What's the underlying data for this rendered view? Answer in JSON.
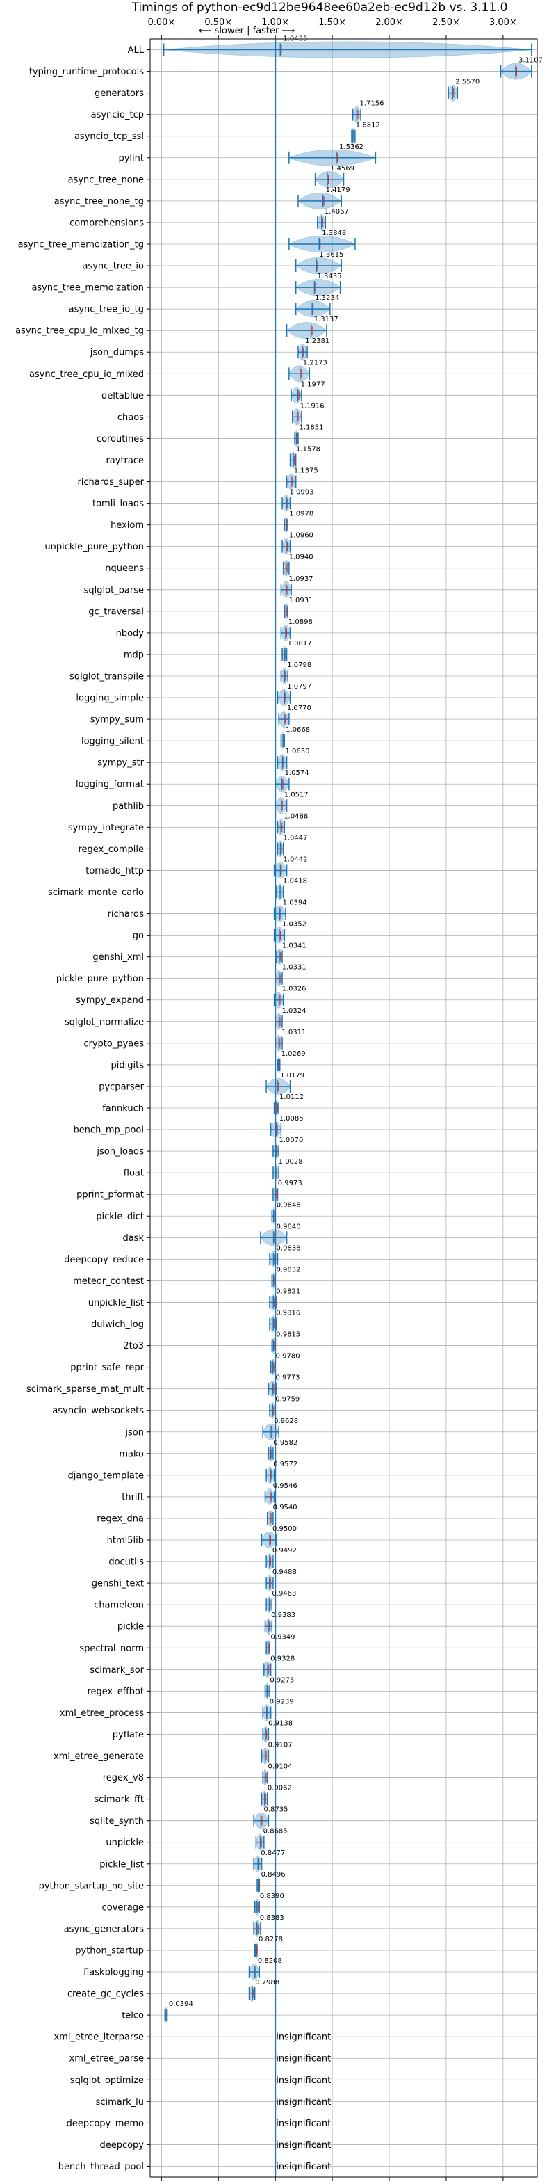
{
  "chart_data": {
    "type": "violin",
    "title": "Timings of python-ec9d12be9648ee60a2eb-ec9d12b vs. 3.11.0",
    "annotation": "⟵ slower | faster ⟶",
    "xlim": [
      -0.1,
      3.3
    ],
    "xticks": [
      0.0,
      0.5,
      1.0,
      1.5,
      2.0,
      2.5,
      3.0
    ],
    "xtick_labels": [
      "0.00×",
      "0.50×",
      "1.00×",
      "1.50×",
      "2.00×",
      "2.50×",
      "3.00×"
    ],
    "reference_line": 1.0,
    "grid": true,
    "colors": {
      "violin": "#1f77b4",
      "median": "#1f77b4",
      "mean": "#d62728"
    },
    "benchmarks": [
      {
        "name": "ALL",
        "value": 1.0435,
        "label": "1.0435",
        "min": 0.02,
        "max": 3.25
      },
      {
        "name": "typing_runtime_protocols",
        "value": 3.1107,
        "label": "3.1107",
        "min": 2.98,
        "max": 3.25
      },
      {
        "name": "generators",
        "value": 2.557,
        "label": "2.5570",
        "min": 2.52,
        "max": 2.6
      },
      {
        "name": "asyncio_tcp",
        "value": 1.7156,
        "label": "1.7156",
        "min": 1.68,
        "max": 1.75
      },
      {
        "name": "asyncio_tcp_ssl",
        "value": 1.6812,
        "label": "1.6812",
        "min": 1.67,
        "max": 1.7
      },
      {
        "name": "pylint",
        "value": 1.5362,
        "label": "1.5362",
        "min": 1.12,
        "max": 1.88
      },
      {
        "name": "async_tree_none",
        "value": 1.4569,
        "label": "1.4569",
        "min": 1.35,
        "max": 1.6
      },
      {
        "name": "async_tree_none_tg",
        "value": 1.4179,
        "label": "1.4179",
        "min": 1.2,
        "max": 1.58
      },
      {
        "name": "comprehensions",
        "value": 1.4067,
        "label": "1.4067",
        "min": 1.37,
        "max": 1.44
      },
      {
        "name": "async_tree_memoization_tg",
        "value": 1.3848,
        "label": "1.3848",
        "min": 1.12,
        "max": 1.7
      },
      {
        "name": "async_tree_io",
        "value": 1.3615,
        "label": "1.3615",
        "min": 1.18,
        "max": 1.58
      },
      {
        "name": "async_tree_memoization",
        "value": 1.3435,
        "label": "1.3435",
        "min": 1.18,
        "max": 1.57
      },
      {
        "name": "async_tree_io_tg",
        "value": 1.3234,
        "label": "1.3234",
        "min": 1.18,
        "max": 1.48
      },
      {
        "name": "async_tree_cpu_io_mixed_tg",
        "value": 1.3137,
        "label": "1.3137",
        "min": 1.1,
        "max": 1.45
      },
      {
        "name": "json_dumps",
        "value": 1.2381,
        "label": "1.2381",
        "min": 1.2,
        "max": 1.28
      },
      {
        "name": "async_tree_cpu_io_mixed",
        "value": 1.2173,
        "label": "1.2173",
        "min": 1.12,
        "max": 1.3
      },
      {
        "name": "deltablue",
        "value": 1.1977,
        "label": "1.1977",
        "min": 1.14,
        "max": 1.23
      },
      {
        "name": "chaos",
        "value": 1.1916,
        "label": "1.1916",
        "min": 1.15,
        "max": 1.23
      },
      {
        "name": "coroutines",
        "value": 1.1851,
        "label": "1.1851",
        "min": 1.17,
        "max": 1.2
      },
      {
        "name": "raytrace",
        "value": 1.1578,
        "label": "1.1578",
        "min": 1.13,
        "max": 1.18
      },
      {
        "name": "richards_super",
        "value": 1.1375,
        "label": "1.1375",
        "min": 1.1,
        "max": 1.18
      },
      {
        "name": "tomli_loads",
        "value": 1.0993,
        "label": "1.0993",
        "min": 1.06,
        "max": 1.13
      },
      {
        "name": "hexiom",
        "value": 1.0978,
        "label": "1.0978",
        "min": 1.08,
        "max": 1.11
      },
      {
        "name": "unpickle_pure_python",
        "value": 1.096,
        "label": "1.0960",
        "min": 1.06,
        "max": 1.13
      },
      {
        "name": "nqueens",
        "value": 1.094,
        "label": "1.0940",
        "min": 1.07,
        "max": 1.12
      },
      {
        "name": "sqlglot_parse",
        "value": 1.0937,
        "label": "1.0937",
        "min": 1.05,
        "max": 1.14
      },
      {
        "name": "gc_traversal",
        "value": 1.0931,
        "label": "1.0931",
        "min": 1.08,
        "max": 1.11
      },
      {
        "name": "nbody",
        "value": 1.0898,
        "label": "1.0898",
        "min": 1.05,
        "max": 1.13
      },
      {
        "name": "mdp",
        "value": 1.0817,
        "label": "1.0817",
        "min": 1.06,
        "max": 1.1
      },
      {
        "name": "sqlglot_transpile",
        "value": 1.0798,
        "label": "1.0798",
        "min": 1.05,
        "max": 1.11
      },
      {
        "name": "logging_simple",
        "value": 1.0797,
        "label": "1.0797",
        "min": 1.02,
        "max": 1.13
      },
      {
        "name": "sympy_sum",
        "value": 1.077,
        "label": "1.0770",
        "min": 1.03,
        "max": 1.12
      },
      {
        "name": "logging_silent",
        "value": 1.0668,
        "label": "1.0668",
        "min": 1.05,
        "max": 1.08
      },
      {
        "name": "sympy_str",
        "value": 1.063,
        "label": "1.0630",
        "min": 1.02,
        "max": 1.1
      },
      {
        "name": "logging_format",
        "value": 1.0574,
        "label": "1.0574",
        "min": 1.0,
        "max": 1.12
      },
      {
        "name": "pathlib",
        "value": 1.0517,
        "label": "1.0517",
        "min": 1.0,
        "max": 1.1
      },
      {
        "name": "sympy_integrate",
        "value": 1.0488,
        "label": "1.0488",
        "min": 1.02,
        "max": 1.08
      },
      {
        "name": "regex_compile",
        "value": 1.0447,
        "label": "1.0447",
        "min": 1.02,
        "max": 1.07
      },
      {
        "name": "tornado_http",
        "value": 1.0442,
        "label": "1.0442",
        "min": 0.99,
        "max": 1.1
      },
      {
        "name": "scimark_monte_carlo",
        "value": 1.0418,
        "label": "1.0418",
        "min": 1.01,
        "max": 1.07
      },
      {
        "name": "richards",
        "value": 1.0394,
        "label": "1.0394",
        "min": 0.99,
        "max": 1.09
      },
      {
        "name": "go",
        "value": 1.0352,
        "label": "1.0352",
        "min": 0.99,
        "max": 1.08
      },
      {
        "name": "genshi_xml",
        "value": 1.0341,
        "label": "1.0341",
        "min": 1.01,
        "max": 1.06
      },
      {
        "name": "pickle_pure_python",
        "value": 1.0331,
        "label": "1.0331",
        "min": 1.0,
        "max": 1.06
      },
      {
        "name": "sympy_expand",
        "value": 1.0326,
        "label": "1.0326",
        "min": 0.99,
        "max": 1.07
      },
      {
        "name": "sqlglot_normalize",
        "value": 1.0324,
        "label": "1.0324",
        "min": 1.0,
        "max": 1.06
      },
      {
        "name": "crypto_pyaes",
        "value": 1.0311,
        "label": "1.0311",
        "min": 1.0,
        "max": 1.06
      },
      {
        "name": "pidigits",
        "value": 1.0269,
        "label": "1.0269",
        "min": 1.02,
        "max": 1.04
      },
      {
        "name": "pycparser",
        "value": 1.0179,
        "label": "1.0179",
        "min": 0.92,
        "max": 1.13
      },
      {
        "name": "fannkuch",
        "value": 1.0112,
        "label": "1.0112",
        "min": 0.99,
        "max": 1.03
      },
      {
        "name": "bench_mp_pool",
        "value": 1.0085,
        "label": "1.0085",
        "min": 0.96,
        "max": 1.05
      },
      {
        "name": "json_loads",
        "value": 1.007,
        "label": "1.0070",
        "min": 0.98,
        "max": 1.03
      },
      {
        "name": "float",
        "value": 1.0028,
        "label": "1.0028",
        "min": 0.98,
        "max": 1.03
      },
      {
        "name": "pprint_pformat",
        "value": 0.9973,
        "label": "0.9973",
        "min": 0.98,
        "max": 1.02
      },
      {
        "name": "pickle_dict",
        "value": 0.9848,
        "label": "0.9848",
        "min": 0.97,
        "max": 1.0
      },
      {
        "name": "dask",
        "value": 0.984,
        "label": "0.9840",
        "min": 0.87,
        "max": 1.1
      },
      {
        "name": "deepcopy_reduce",
        "value": 0.9838,
        "label": "0.9838",
        "min": 0.95,
        "max": 1.02
      },
      {
        "name": "meteor_contest",
        "value": 0.9832,
        "label": "0.9832",
        "min": 0.97,
        "max": 1.0
      },
      {
        "name": "unpickle_list",
        "value": 0.9821,
        "label": "0.9821",
        "min": 0.95,
        "max": 1.01
      },
      {
        "name": "dulwich_log",
        "value": 0.9816,
        "label": "0.9816",
        "min": 0.95,
        "max": 1.01
      },
      {
        "name": "2to3",
        "value": 0.9815,
        "label": "0.9815",
        "min": 0.97,
        "max": 1.0
      },
      {
        "name": "pprint_safe_repr",
        "value": 0.978,
        "label": "0.9780",
        "min": 0.96,
        "max": 1.0
      },
      {
        "name": "scimark_sparse_mat_mult",
        "value": 0.9773,
        "label": "0.9773",
        "min": 0.94,
        "max": 1.01
      },
      {
        "name": "asyncio_websockets",
        "value": 0.9759,
        "label": "0.9759",
        "min": 0.95,
        "max": 1.0
      },
      {
        "name": "json",
        "value": 0.9628,
        "label": "0.9628",
        "min": 0.89,
        "max": 1.03
      },
      {
        "name": "mako",
        "value": 0.9582,
        "label": "0.9582",
        "min": 0.94,
        "max": 0.98
      },
      {
        "name": "django_template",
        "value": 0.9572,
        "label": "0.9572",
        "min": 0.92,
        "max": 0.99
      },
      {
        "name": "thrift",
        "value": 0.9546,
        "label": "0.9546",
        "min": 0.91,
        "max": 0.99
      },
      {
        "name": "regex_dna",
        "value": 0.954,
        "label": "0.9540",
        "min": 0.93,
        "max": 0.98
      },
      {
        "name": "html5lib",
        "value": 0.95,
        "label": "0.9500",
        "min": 0.88,
        "max": 1.01
      },
      {
        "name": "docutils",
        "value": 0.9492,
        "label": "0.9492",
        "min": 0.92,
        "max": 0.98
      },
      {
        "name": "genshi_text",
        "value": 0.9488,
        "label": "0.9488",
        "min": 0.92,
        "max": 0.98
      },
      {
        "name": "chameleon",
        "value": 0.9463,
        "label": "0.9463",
        "min": 0.92,
        "max": 0.97
      },
      {
        "name": "pickle",
        "value": 0.9383,
        "label": "0.9383",
        "min": 0.91,
        "max": 0.97
      },
      {
        "name": "spectral_norm",
        "value": 0.9349,
        "label": "0.9349",
        "min": 0.92,
        "max": 0.95
      },
      {
        "name": "scimark_sor",
        "value": 0.9328,
        "label": "0.9328",
        "min": 0.9,
        "max": 0.96
      },
      {
        "name": "regex_effbot",
        "value": 0.9275,
        "label": "0.9275",
        "min": 0.91,
        "max": 0.95
      },
      {
        "name": "xml_etree_process",
        "value": 0.9239,
        "label": "0.9239",
        "min": 0.89,
        "max": 0.96
      },
      {
        "name": "pyflate",
        "value": 0.9138,
        "label": "0.9138",
        "min": 0.89,
        "max": 0.94
      },
      {
        "name": "xml_etree_generate",
        "value": 0.9107,
        "label": "0.9107",
        "min": 0.88,
        "max": 0.94
      },
      {
        "name": "regex_v8",
        "value": 0.9104,
        "label": "0.9104",
        "min": 0.89,
        "max": 0.93
      },
      {
        "name": "scimark_fft",
        "value": 0.9062,
        "label": "0.9062",
        "min": 0.88,
        "max": 0.93
      },
      {
        "name": "sqlite_synth",
        "value": 0.8735,
        "label": "0.8735",
        "min": 0.81,
        "max": 0.94
      },
      {
        "name": "unpickle",
        "value": 0.8685,
        "label": "0.8685",
        "min": 0.83,
        "max": 0.9
      },
      {
        "name": "pickle_list",
        "value": 0.8477,
        "label": "0.8477",
        "min": 0.81,
        "max": 0.88
      },
      {
        "name": "python_startup_no_site",
        "value": 0.8496,
        "label": "0.8496",
        "min": 0.84,
        "max": 0.86
      },
      {
        "name": "coverage",
        "value": 0.839,
        "label": "0.8390",
        "min": 0.82,
        "max": 0.86
      },
      {
        "name": "async_generators",
        "value": 0.8383,
        "label": "0.8383",
        "min": 0.81,
        "max": 0.87
      },
      {
        "name": "python_startup",
        "value": 0.8278,
        "label": "0.8278",
        "min": 0.82,
        "max": 0.84
      },
      {
        "name": "flaskblogging",
        "value": 0.8208,
        "label": "0.8208",
        "min": 0.77,
        "max": 0.86
      },
      {
        "name": "create_gc_cycles",
        "value": 0.7988,
        "label": "0.7988",
        "min": 0.77,
        "max": 0.82
      },
      {
        "name": "telco",
        "value": 0.0394,
        "label": "0.0394",
        "min": 0.03,
        "max": 0.05
      },
      {
        "name": "xml_etree_iterparse",
        "value": null,
        "label": "insignificant"
      },
      {
        "name": "xml_etree_parse",
        "value": null,
        "label": "insignificant"
      },
      {
        "name": "sqlglot_optimize",
        "value": null,
        "label": "insignificant"
      },
      {
        "name": "scimark_lu",
        "value": null,
        "label": "insignificant"
      },
      {
        "name": "deepcopy_memo",
        "value": null,
        "label": "insignificant"
      },
      {
        "name": "deepcopy",
        "value": null,
        "label": "insignificant"
      },
      {
        "name": "bench_thread_pool",
        "value": null,
        "label": "insignificant"
      }
    ]
  }
}
